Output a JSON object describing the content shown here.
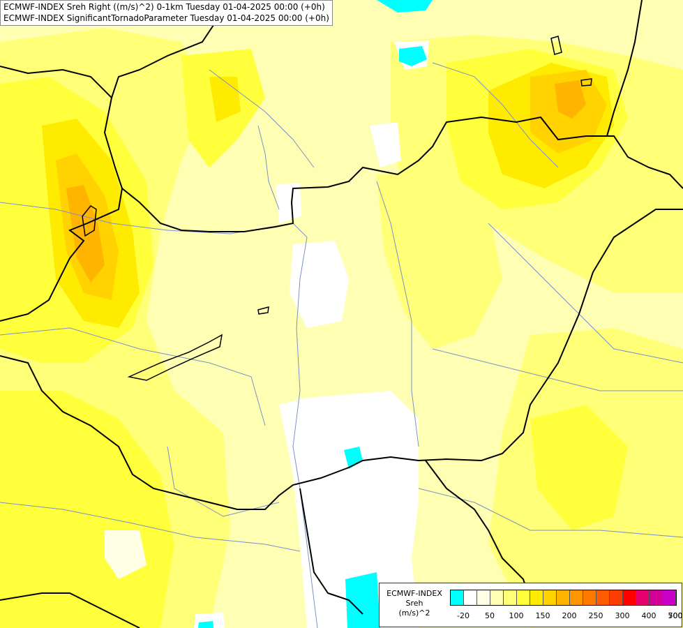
{
  "title": {
    "line1": "ECMWF-INDEX Sreh Right ((m/s)^2) 0-1km Tuesday 01-04-2025 00:00 (+0h)",
    "line2": "ECMWF-INDEX SignificantTornadoParameter Tuesday 01-04-2025 00:00 (+0h)"
  },
  "legend": {
    "source": "ECMWF-INDEX",
    "param": "Sreh",
    "unit": "(m/s)^2",
    "colors": [
      "#00ffff",
      "#ffffff",
      "#ffffe6",
      "#ffffb4",
      "#ffff78",
      "#ffff3c",
      "#ffeb00",
      "#ffd200",
      "#ffb400",
      "#ff9600",
      "#ff7800",
      "#ff5a00",
      "#ff3c00",
      "#ff0000",
      "#e6006e",
      "#d20096",
      "#c800c8",
      "#a000e6",
      "#7800f0",
      "#5000dc",
      "#2800c8",
      "#00008c"
    ],
    "tick_labels": [
      "-20",
      "50",
      "100",
      "150",
      "200",
      "250",
      "300",
      "400",
      "500",
      "700"
    ]
  },
  "colors": {
    "background": "#ffffb4",
    "border_line": "#000000",
    "river_line": "#7a90c8"
  }
}
